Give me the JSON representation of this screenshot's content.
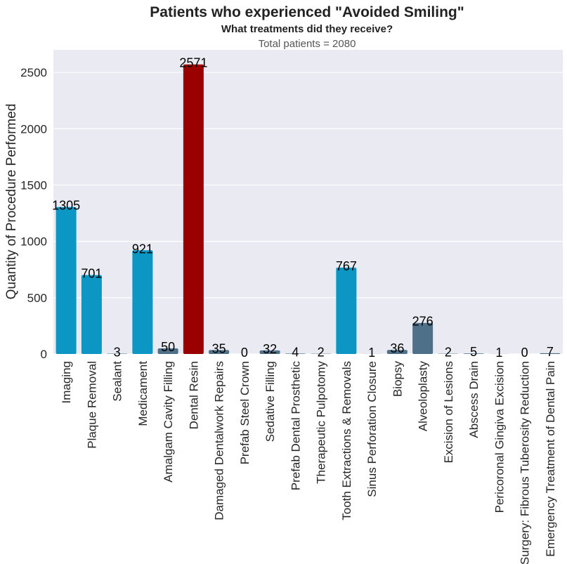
{
  "colors": {
    "background": "#eaeaf2",
    "grid": "#ffffff",
    "primary": "#0b96c4",
    "secondary": "#4e7088",
    "highlight": "#9a0000"
  },
  "chart_data": {
    "type": "bar",
    "title": "Patients who experienced \"Avoided Smiling\"",
    "subtitle": "What treatments did they receive?",
    "note": "Total patients = 2080",
    "xlabel": "",
    "ylabel": "Quantity of Procedure Performed",
    "ylim": [
      0,
      2700
    ],
    "yticks": [
      0,
      500,
      1000,
      1500,
      2000,
      2500
    ],
    "grid": true,
    "categories": [
      "Imaging",
      "Plaque Removal",
      "Sealant",
      "Medicament",
      "Amalgam Cavity Filling",
      "Dental Resin",
      "Damaged Dentalwork Repairs",
      "Prefab Steel Crown",
      "Sedative Filling",
      "Prefab Dental Prosthetic",
      "Therapeutic Pulpotomy",
      "Tooth Extractions & Removals",
      "Sinus Perforation Closure",
      "Biopsy",
      "Alveoloplasty",
      "Excision of Lesions",
      "Abscess Drain",
      "Pericoronal Gingiva Excision",
      "Surgery: Fibrous Tuberosity Reduction",
      "Emergency Treatment of Dental Pain"
    ],
    "values": [
      1305,
      701,
      3,
      921,
      50,
      2571,
      35,
      0,
      32,
      4,
      2,
      767,
      1,
      36,
      276,
      2,
      5,
      1,
      0,
      7
    ],
    "bar_colors": [
      "primary",
      "primary",
      "secondary",
      "primary",
      "secondary",
      "highlight",
      "secondary",
      "secondary",
      "secondary",
      "secondary",
      "secondary",
      "primary",
      "secondary",
      "secondary",
      "secondary",
      "secondary",
      "secondary",
      "secondary",
      "secondary",
      "secondary"
    ]
  }
}
